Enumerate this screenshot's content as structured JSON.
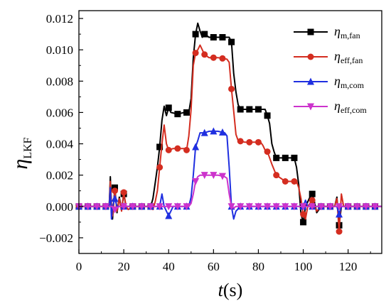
{
  "chart_data": {
    "type": "line",
    "title": "",
    "xlabel": {
      "symbol": "t",
      "unit": "(s)"
    },
    "ylabel": {
      "symbol": "η",
      "subscript": "LKF"
    },
    "xlim": [
      0,
      135
    ],
    "ylim": [
      -0.003,
      0.0125
    ],
    "xticks": [
      0,
      20,
      40,
      60,
      80,
      100,
      120
    ],
    "yticks": [
      -0.002,
      0.0,
      0.002,
      0.004,
      0.006,
      0.008,
      0.01,
      0.012
    ],
    "ytick_labels": [
      "−0.002",
      "0.000",
      "0.002",
      "0.004",
      "0.006",
      "0.008",
      "0.010",
      "0.012"
    ],
    "grid": false,
    "legend_position": "top-right",
    "series": [
      {
        "name": "η_m,fan",
        "legend_main": "η",
        "legend_sub": "m,fan",
        "color": "#000000",
        "marker": "square",
        "x": [
          0,
          4,
          8,
          12,
          13.5,
          14,
          14.5,
          15,
          16,
          17,
          18,
          19,
          20,
          21,
          22,
          24,
          28,
          32,
          33,
          34,
          35,
          36,
          37,
          38,
          39,
          40,
          41,
          44,
          47,
          49,
          50,
          51,
          52,
          53,
          54,
          55,
          56,
          58,
          62,
          66,
          67,
          68,
          69,
          70,
          71,
          72,
          76,
          80,
          83,
          84,
          85,
          86,
          87,
          88,
          92,
          96,
          97,
          98,
          99,
          100,
          101,
          102,
          103,
          104,
          105,
          106,
          108,
          110,
          112,
          114,
          115,
          116,
          117,
          118,
          120,
          124,
          128,
          132,
          135
        ],
        "y": [
          0.0,
          0.0,
          0.0,
          0.0,
          0.0,
          0.0019,
          0.0,
          -0.0008,
          0.0012,
          -0.0004,
          0.0006,
          -0.0002,
          0.0008,
          0.0,
          0.0,
          0.0,
          0.0,
          0.0,
          0.0005,
          0.0015,
          0.0025,
          0.0038,
          0.0055,
          0.0064,
          0.0058,
          0.0063,
          0.006,
          0.0059,
          0.006,
          0.006,
          0.0069,
          0.0095,
          0.011,
          0.0117,
          0.0112,
          0.0108,
          0.011,
          0.0108,
          0.0108,
          0.0108,
          0.0108,
          0.0105,
          0.0085,
          0.0073,
          0.0065,
          0.0062,
          0.0062,
          0.0062,
          0.0062,
          0.0058,
          0.0053,
          0.004,
          0.0035,
          0.0031,
          0.0031,
          0.0031,
          0.0025,
          0.0014,
          -0.0005,
          -0.001,
          0.0,
          0.0003,
          0.0006,
          0.0008,
          0.0003,
          -0.0004,
          0.0,
          0.0,
          0.0,
          0.0,
          0.0006,
          -0.0012,
          0.0,
          0.0,
          0.0,
          0.0,
          0.0,
          0.0,
          0.0
        ]
      },
      {
        "name": "η_eff,fan",
        "legend_main": "η",
        "legend_sub": "eff,fan",
        "color": "#d42d20",
        "marker": "circle",
        "x": [
          0,
          4,
          8,
          12,
          13.5,
          14,
          14.5,
          15,
          16,
          17,
          18,
          19,
          20,
          21,
          22,
          24,
          28,
          32,
          33,
          34,
          35,
          36,
          37,
          38,
          39,
          40,
          42,
          44,
          46,
          47,
          48,
          49,
          50,
          51,
          52,
          53,
          54,
          56,
          58,
          62,
          66,
          67,
          68,
          69,
          70,
          71,
          74,
          78,
          80,
          81,
          82,
          83,
          84,
          86,
          88,
          92,
          96,
          97,
          98,
          99,
          100,
          101,
          102,
          103,
          104,
          105,
          106,
          108,
          110,
          112,
          114,
          115,
          116,
          117,
          118,
          120,
          124,
          128,
          132,
          135
        ],
        "y": [
          0.0,
          0.0,
          0.0,
          0.0,
          0.0,
          0.0016,
          0.0,
          -0.0006,
          0.001,
          -0.0003,
          0.0005,
          -0.0003,
          0.0009,
          0.0,
          -0.0002,
          0.0,
          0.0,
          0.0,
          -0.0002,
          0.0003,
          0.001,
          0.0025,
          0.004,
          0.0052,
          0.004,
          0.0036,
          0.0037,
          0.0037,
          0.0037,
          0.0037,
          0.0036,
          0.0045,
          0.0062,
          0.009,
          0.0098,
          0.01,
          0.0103,
          0.0097,
          0.0095,
          0.0095,
          0.0094,
          0.0092,
          0.0075,
          0.0061,
          0.0046,
          0.0042,
          0.0041,
          0.0041,
          0.0041,
          0.0041,
          0.0039,
          0.0036,
          0.0035,
          0.0027,
          0.002,
          0.0016,
          0.0016,
          0.0016,
          0.0012,
          0.0005,
          -0.0005,
          -0.0008,
          0.0,
          0.0002,
          0.0004,
          0.0,
          -0.0003,
          0.0,
          0.0,
          0.0,
          0.0,
          0.0005,
          -0.0016,
          0.0008,
          0.0,
          0.0,
          0.0,
          0.0,
          0.0,
          0.0
        ]
      },
      {
        "name": "η_m,com",
        "legend_main": "η",
        "legend_sub": "m,com",
        "color": "#1f2fe0",
        "marker": "triangle-up",
        "x": [
          0,
          4,
          8,
          12,
          13.5,
          14,
          14.5,
          15,
          16,
          17,
          18,
          20,
          24,
          28,
          32,
          34,
          35,
          36,
          37,
          38,
          39,
          40,
          42,
          46,
          48,
          49,
          50,
          51,
          52,
          53,
          54,
          56,
          58,
          62,
          65,
          66,
          67,
          68,
          69,
          70,
          72,
          76,
          80,
          84,
          88,
          92,
          96,
          100,
          101,
          102,
          104,
          108,
          112,
          115,
          116,
          117,
          120,
          124,
          128,
          132,
          135
        ],
        "y": [
          0.0,
          0.0,
          0.0,
          0.0,
          0.0,
          0.0012,
          -0.0008,
          0.0,
          0.0005,
          0.0,
          0.0,
          0.0,
          0.0,
          0.0,
          0.0,
          0.0,
          0.0,
          0.0,
          0.0008,
          0.0,
          -0.0003,
          -0.0006,
          0.0,
          0.0,
          0.0,
          0.0,
          0.0006,
          0.002,
          0.0038,
          0.0042,
          0.0047,
          0.0047,
          0.0048,
          0.0048,
          0.0047,
          0.0045,
          0.0025,
          0.0,
          -0.0008,
          -0.0003,
          0.0,
          0.0,
          0.0,
          0.0,
          0.0,
          0.0,
          0.0,
          0.0,
          0.0004,
          0.0,
          0.0,
          0.0,
          0.0,
          0.0,
          -0.0005,
          0.0,
          0.0,
          0.0,
          0.0,
          0.0,
          0.0
        ]
      },
      {
        "name": "η_eff,com",
        "legend_main": "η",
        "legend_sub": "eff,com",
        "color": "#cc33cc",
        "marker": "triangle-down",
        "x": [
          0,
          4,
          8,
          12,
          14,
          15,
          16,
          18,
          20,
          24,
          28,
          32,
          36,
          40,
          44,
          48,
          49,
          50,
          51,
          52,
          53,
          54,
          56,
          58,
          62,
          65,
          66,
          67,
          68,
          69,
          70,
          72,
          76,
          80,
          84,
          88,
          92,
          96,
          100,
          104,
          108,
          112,
          116,
          120,
          124,
          128,
          132,
          135
        ],
        "y": [
          0.0,
          0.0,
          0.0,
          0.0,
          0.0,
          0.0,
          -0.0002,
          0.0,
          0.0,
          0.0,
          0.0,
          0.0,
          0.0,
          0.0,
          0.0,
          0.0,
          0.0,
          0.0002,
          0.0008,
          0.0016,
          0.0019,
          0.002,
          0.002,
          0.002,
          0.002,
          0.0019,
          0.0018,
          0.0008,
          0.0,
          -0.0001,
          0.0,
          0.0,
          0.0,
          0.0,
          0.0,
          0.0,
          0.0,
          0.0,
          0.0,
          0.0,
          0.0,
          0.0,
          0.0,
          0.0,
          0.0,
          0.0,
          0.0,
          0.0
        ]
      }
    ]
  }
}
